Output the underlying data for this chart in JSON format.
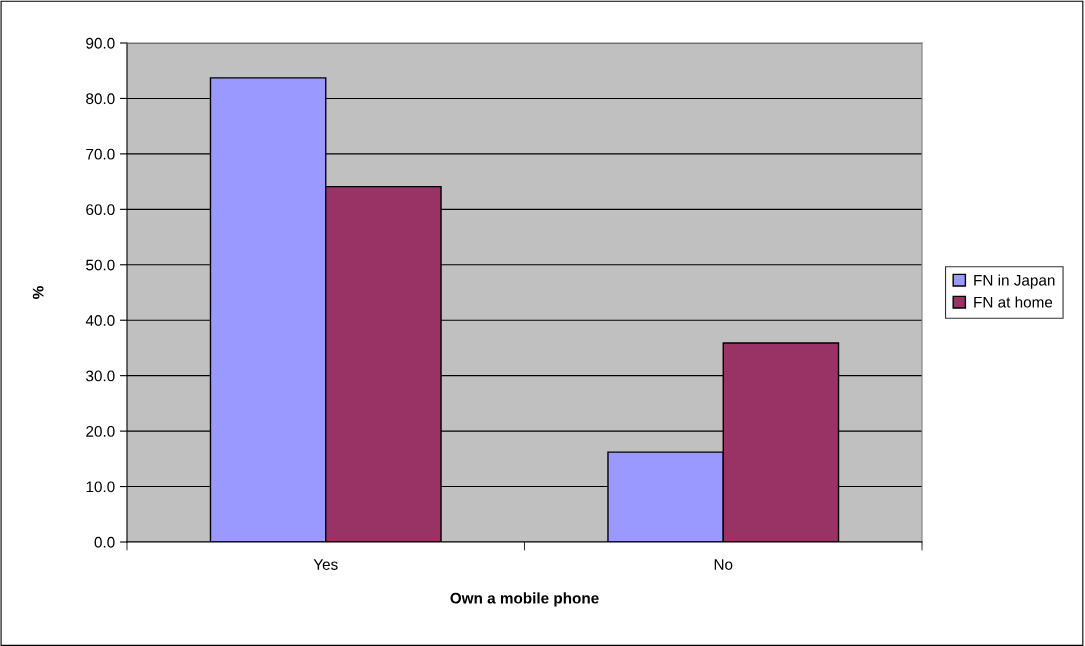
{
  "chart_data": {
    "type": "bar",
    "xlabel": "Own a mobile phone",
    "ylabel": "%",
    "categories": [
      "Yes",
      "No"
    ],
    "series": [
      {
        "name": "FN in Japan",
        "color": "#9999ff",
        "values": [
          83.7,
          16.2
        ]
      },
      {
        "name": "FN at home",
        "color": "#993366",
        "values": [
          64.1,
          35.9
        ]
      }
    ],
    "ylim": [
      0,
      90
    ],
    "yticks": [
      {
        "value": 0,
        "label": "0.0"
      },
      {
        "value": 10,
        "label": "10.0"
      },
      {
        "value": 20,
        "label": "20.0"
      },
      {
        "value": 30,
        "label": "30.0"
      },
      {
        "value": 40,
        "label": "40.0"
      },
      {
        "value": 50,
        "label": "50.0"
      },
      {
        "value": 60,
        "label": "60.0"
      },
      {
        "value": 70,
        "label": "70.0"
      },
      {
        "value": 80,
        "label": "80.0"
      },
      {
        "value": 90,
        "label": "90.0"
      }
    ],
    "grid": "y",
    "legend": "right"
  }
}
